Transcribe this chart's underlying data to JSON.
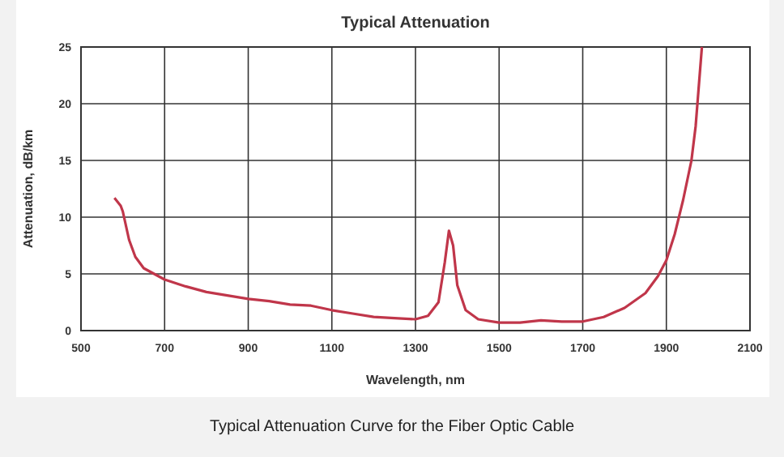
{
  "chart_data": {
    "type": "line",
    "title": "Typical Attenuation",
    "xlabel": "Wavelength, nm",
    "ylabel": "Attenuation, dB/km",
    "annotations": [
      "Typical Attenuation Curve for the Fiber Optic Cable"
    ],
    "xlim": [
      500,
      2100
    ],
    "ylim": [
      0,
      25
    ],
    "xticks": [
      500,
      700,
      900,
      1100,
      1300,
      1500,
      1700,
      1900,
      2100
    ],
    "yticks": [
      0,
      5,
      10,
      15,
      20,
      25
    ],
    "grid": true,
    "series": [
      {
        "color": "#c0364a",
        "x": [
          580,
          595,
          600,
          615,
          630,
          650,
          700,
          750,
          800,
          850,
          900,
          950,
          1000,
          1050,
          1100,
          1150,
          1200,
          1250,
          1300,
          1330,
          1355,
          1370,
          1380,
          1390,
          1400,
          1420,
          1450,
          1500,
          1550,
          1600,
          1650,
          1700,
          1750,
          1800,
          1850,
          1880,
          1900,
          1920,
          1940,
          1960,
          1970,
          1985
        ],
        "values": [
          11.7,
          11,
          10.5,
          8,
          6.5,
          5.5,
          4.5,
          3.9,
          3.4,
          3.1,
          2.8,
          2.6,
          2.3,
          2.2,
          1.8,
          1.5,
          1.2,
          1.1,
          1.0,
          1.3,
          2.5,
          6,
          8.8,
          7.5,
          4,
          1.8,
          1.0,
          0.7,
          0.7,
          0.9,
          0.8,
          0.8,
          1.2,
          2,
          3.3,
          4.8,
          6.2,
          8.5,
          11.5,
          15,
          18,
          25
        ]
      }
    ]
  }
}
